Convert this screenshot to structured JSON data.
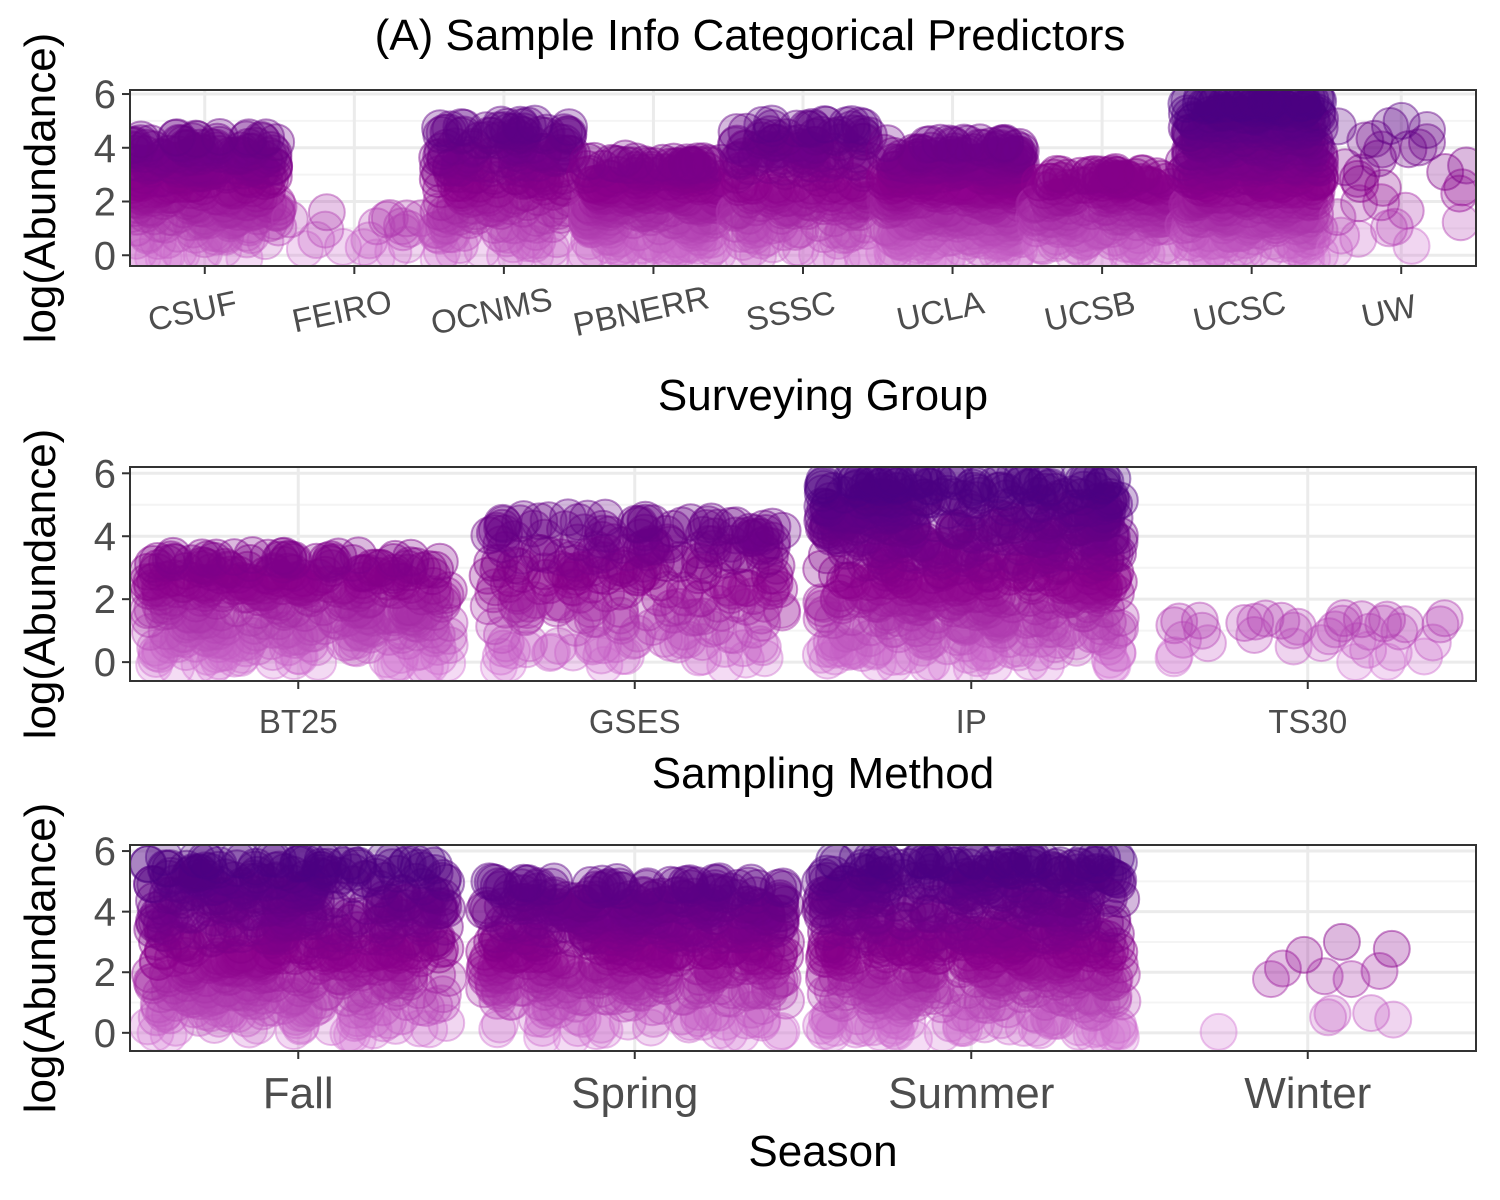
{
  "figure": {
    "title": "(A) Sample Info Categorical Predictors"
  },
  "colors": {
    "point_low": "#dd88dd",
    "point_mid": "#8b008b",
    "point_high": "#4b0082",
    "grid_major": "#ebebeb",
    "grid_minor": "#f4f4f4",
    "panel_border": "#333333",
    "tick_text": "#4d4d4d"
  },
  "chart_data": [
    {
      "type": "scatter",
      "style": "jittered strip plot",
      "xlabel": "Surveying Group",
      "ylabel": "log(Abundance)",
      "categories": [
        "CSUF",
        "FEIRO",
        "OCNMS",
        "PBNERR",
        "SSSC",
        "UCLA",
        "UCSB",
        "UCSC",
        "UW"
      ],
      "y_ticks": [
        0,
        2,
        4,
        6
      ],
      "ylim": [
        -0.4,
        6.15
      ],
      "grid": true,
      "x_tick_rotation": "slanted",
      "groups": [
        {
          "category": "CSUF",
          "n": 260,
          "min": -0.2,
          "max": 4.4,
          "spread": 0.5
        },
        {
          "category": "FEIRO",
          "n": 18,
          "min": -0.2,
          "max": 1.6,
          "spread": 0.45
        },
        {
          "category": "OCNMS",
          "n": 200,
          "min": -0.2,
          "max": 4.9,
          "spread": 0.46
        },
        {
          "category": "PBNERR",
          "n": 230,
          "min": -0.2,
          "max": 3.6,
          "spread": 0.46
        },
        {
          "category": "SSSC",
          "n": 200,
          "min": -0.2,
          "max": 4.9,
          "spread": 0.46
        },
        {
          "category": "UCLA",
          "n": 320,
          "min": -0.2,
          "max": 4.2,
          "spread": 0.46
        },
        {
          "category": "UCSB",
          "n": 180,
          "min": -0.2,
          "max": 3.1,
          "spread": 0.46
        },
        {
          "category": "UCSC",
          "n": 420,
          "min": -0.2,
          "max": 5.9,
          "spread": 0.46
        },
        {
          "category": "UW",
          "n": 30,
          "min": -0.3,
          "max": 5.0,
          "spread": 0.46
        }
      ]
    },
    {
      "type": "scatter",
      "style": "jittered strip plot",
      "xlabel": "Sampling Method",
      "ylabel": "log(Abundance)",
      "categories": [
        "BT25",
        "GSES",
        "IP",
        "TS30"
      ],
      "y_ticks": [
        0,
        2,
        4,
        6
      ],
      "ylim": [
        -0.6,
        6.2
      ],
      "grid": true,
      "groups": [
        {
          "category": "BT25",
          "n": 340,
          "min": -0.2,
          "max": 3.4,
          "spread": 0.45
        },
        {
          "category": "GSES",
          "n": 260,
          "min": -0.2,
          "max": 4.6,
          "spread": 0.44
        },
        {
          "category": "IP",
          "n": 600,
          "min": -0.2,
          "max": 5.9,
          "spread": 0.45
        },
        {
          "category": "TS30",
          "n": 35,
          "min": -0.2,
          "max": 1.4,
          "spread": 0.42
        }
      ]
    },
    {
      "type": "scatter",
      "style": "jittered strip plot",
      "xlabel": "Season",
      "ylabel": "log(Abundance)",
      "categories": [
        "Fall",
        "Spring",
        "Summer",
        "Winter"
      ],
      "y_ticks": [
        0,
        2,
        4,
        6
      ],
      "ylim": [
        -0.6,
        6.2
      ],
      "grid": true,
      "groups": [
        {
          "category": "Fall",
          "n": 520,
          "min": -0.2,
          "max": 5.8,
          "spread": 0.45
        },
        {
          "category": "Spring",
          "n": 480,
          "min": -0.2,
          "max": 5.0,
          "spread": 0.45
        },
        {
          "category": "Summer",
          "n": 560,
          "min": -0.2,
          "max": 5.8,
          "spread": 0.45
        },
        {
          "category": "Winter",
          "n": 12,
          "min": -0.1,
          "max": 3.0,
          "spread": 0.3
        }
      ]
    }
  ]
}
